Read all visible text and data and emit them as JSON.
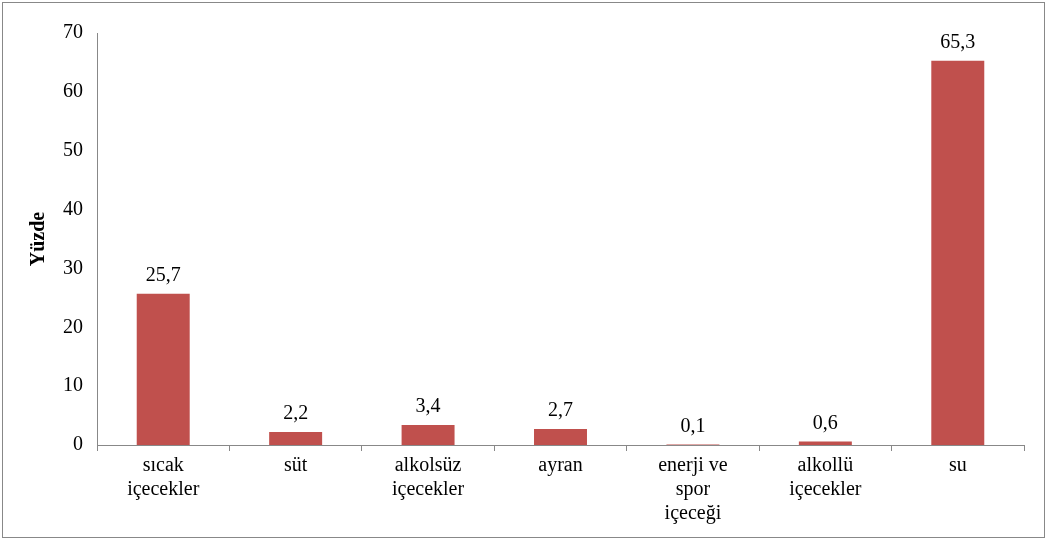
{
  "chart_data": {
    "type": "bar",
    "ylabel": "Yüzde",
    "categories": [
      "sıcak içecekler",
      "süt",
      "alkolsüz içecekler",
      "ayran",
      "enerji ve spor içeceği",
      "alkollü içecekler",
      "su"
    ],
    "values": [
      25.7,
      2.2,
      3.4,
      2.7,
      0.1,
      0.6,
      65.3
    ],
    "value_labels": [
      "25,7",
      "2,2",
      "3,4",
      "2,7",
      "0,1",
      "0,6",
      "65,3"
    ],
    "color": "#c0504d",
    "ylim": [
      0,
      70
    ],
    "yticks": [
      0,
      10,
      20,
      30,
      40,
      50,
      60,
      70
    ],
    "grid": false,
    "legend": false
  }
}
